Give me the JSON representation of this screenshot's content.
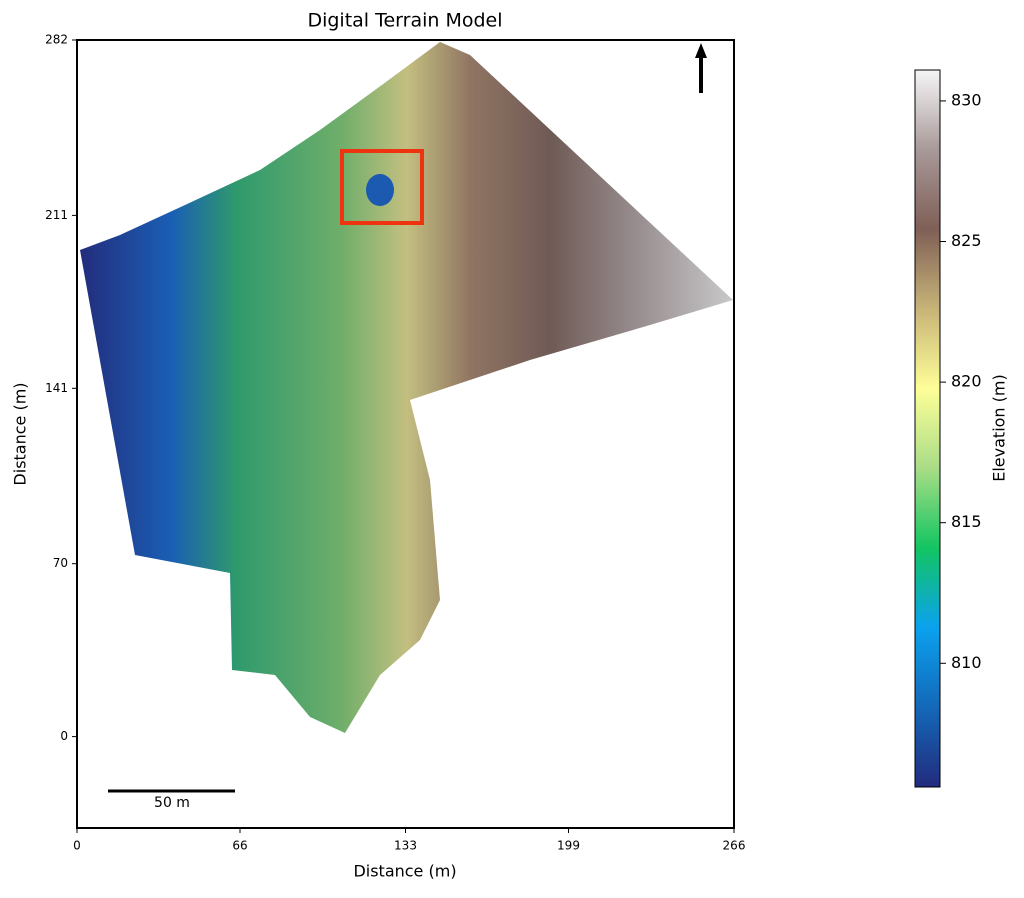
{
  "chart_data": {
    "type": "terrain-map",
    "title": "Digital Terrain Model",
    "x_label": "Distance (m)",
    "y_label": "Distance (m)",
    "xlim": [
      0,
      266
    ],
    "xticks": [
      0,
      66,
      133,
      199,
      266
    ],
    "ylim": [
      -37,
      282
    ],
    "yticks": [
      0,
      70,
      141,
      211,
      282
    ],
    "colorbar": {
      "label": "Elevation (m)",
      "lim": [
        805.6,
        831.1
      ],
      "ticks": [
        810,
        815,
        820,
        825,
        830
      ],
      "colormap": [
        "#222b7d",
        "#1468b8",
        "#0aa2ee",
        "#12c561",
        "#a9dd86",
        "#fefe98",
        "#c7b477",
        "#7f5f56",
        "#a8999a",
        "#f6f6f6"
      ]
    },
    "scale_bar_label": "50 m"
  }
}
